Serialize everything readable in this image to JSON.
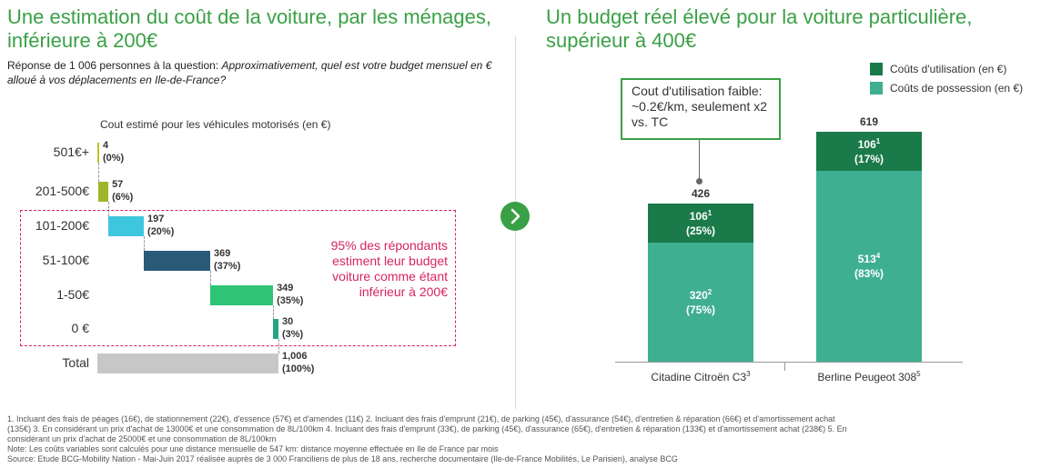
{
  "left": {
    "title": "Une estimation du coût de la voiture, par les ménages, inférieure à 200€",
    "question_prefix": "Réponse de 1 006 personnes à la question: ",
    "question": "Approximativement, quel est votre budget mensuel en € alloué à vos déplacements en Ile-de-France?",
    "axis_title": "Cout estimé pour les véhicules motorisés (en €)",
    "callout": "95% des répondants estiment leur budget voiture comme étant inférieur à 200€"
  },
  "right": {
    "title": "Un budget réel élevé pour la voiture particulière, supérieur à 400€",
    "callout": "Cout d'utilisation faible: ~0.2€/km, seulement x2 vs. TC"
  },
  "chart_data": [
    {
      "type": "bar",
      "orientation": "horizontal-waterfall",
      "categories": [
        "501€+",
        "201-500€",
        "101-200€",
        "51-100€",
        "1-50€",
        "0 €",
        "Total"
      ],
      "values": [
        4,
        57,
        197,
        369,
        349,
        30,
        1006
      ],
      "labels_pct": [
        "(0%)",
        "(6%)",
        "(20%)",
        "(37%)",
        "(35%)",
        "(3%)",
        "(100%)"
      ],
      "value_labels": [
        "4",
        "57",
        "197",
        "369",
        "349",
        "30",
        "1,006"
      ],
      "colors": [
        "#b9c424",
        "#9fb62a",
        "#3ec6de",
        "#2a5a78",
        "#2ec476",
        "#27a287",
        "#c7c7c7"
      ],
      "xlim": [
        0,
        1006
      ],
      "title": "Cout estimé pour les véhicules motorisés (en €)"
    },
    {
      "type": "bar",
      "orientation": "vertical-stacked",
      "categories": [
        "Citadine Citroën C3",
        "Berline Peugeot 308"
      ],
      "category_sups": [
        "3",
        "5"
      ],
      "series": [
        {
          "name": "Coûts de possession (en €)",
          "values": [
            320,
            513
          ],
          "sups": [
            "2",
            "4"
          ],
          "pct": [
            "(75%)",
            "(83%)"
          ],
          "color": "#3faf91"
        },
        {
          "name": "Coûts d'utilisation (en €)",
          "values": [
            106,
            106
          ],
          "sups": [
            "1",
            "1"
          ],
          "pct": [
            "(25%)",
            "(17%)"
          ],
          "color": "#1a7a4a"
        }
      ],
      "totals": [
        426,
        619
      ],
      "ylim": [
        0,
        619
      ],
      "legend": "top-right"
    }
  ],
  "footnotes": {
    "line1": "1. Incluant des frais de péages (16€), de stationnement (22€), d'essence (57€) et d'amendes (11€) 2. Incluant des frais d'emprunt (21€), de parking (45€), d'assurance (54€), d'entretien & réparation (66€) et d'amortissement achat",
    "line2": "(135€) 3. En considérant un prix d'achat de 13000€ et une consommation de 8L/100km 4. Incluant des frais d'emprunt (33€), de parking (45€), d'assurance (65€), d'entretien & réparation (133€) et d'amortissement achat (238€) 5. En",
    "line3": "considérant un prix d'achat de 25000€ et une consommation de 8L/100km",
    "note": "Note: Les coûts variables sont calculés pour une distance mensuelle de 547 km: distance moyenne effectuée en Ile de France par mois",
    "source": "Source: Etude BCG-Mobility Nation - Mai-Juin 2017 réalisée auprès de 3 000 Franciliens de plus de 18 ans, recherche documentaire (Ile-de-France Mobilités, Le Parisien), analyse BCG"
  }
}
